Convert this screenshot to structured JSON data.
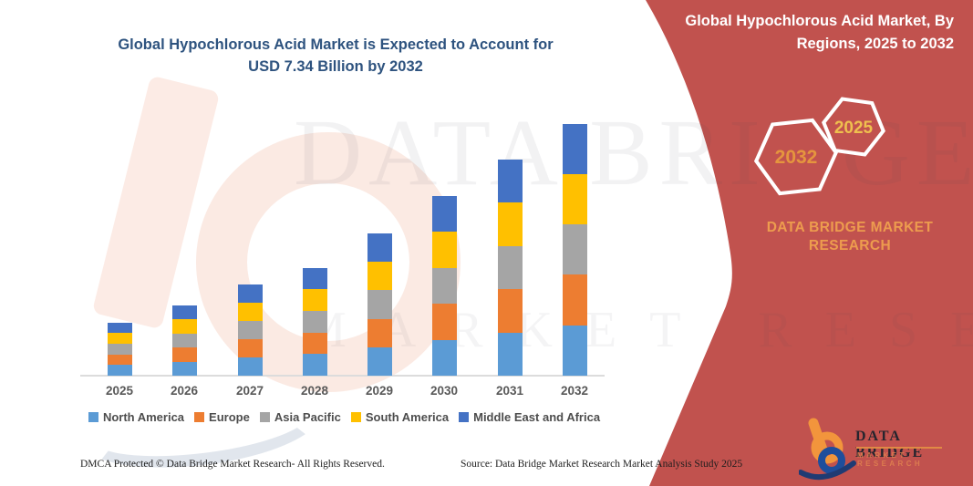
{
  "chart": {
    "title_lines": [
      "Global Hypochlorous Acid Market is Expected to Account for",
      "USD 7.34 Billion by 2032"
    ],
    "title_color": "#2E537F"
  },
  "chart_data": {
    "type": "bar",
    "stacked": true,
    "title": "Global Hypochlorous Acid Market is Expected to Account for USD 7.34 Billion by 2032",
    "unit": "USD Billion",
    "categories": [
      "2025",
      "2026",
      "2027",
      "2028",
      "2029",
      "2030",
      "2031",
      "2032"
    ],
    "totals_usd_billion": [
      1.54,
      2.06,
      2.65,
      3.16,
      4.16,
      5.24,
      6.31,
      7.34
    ],
    "series": [
      {
        "name": "North America",
        "color": "#5B9BD5",
        "values": [
          0.31,
          0.41,
          0.53,
          0.63,
          0.83,
          1.05,
          1.26,
          1.47
        ]
      },
      {
        "name": "Europe",
        "color": "#ED7D31",
        "values": [
          0.31,
          0.41,
          0.53,
          0.63,
          0.83,
          1.05,
          1.26,
          1.47
        ]
      },
      {
        "name": "Asia Pacific",
        "color": "#A5A5A5",
        "values": [
          0.31,
          0.41,
          0.53,
          0.63,
          0.83,
          1.05,
          1.26,
          1.47
        ]
      },
      {
        "name": "South America",
        "color": "#FFC000",
        "values": [
          0.31,
          0.41,
          0.53,
          0.63,
          0.83,
          1.05,
          1.26,
          1.47
        ]
      },
      {
        "name": "Middle East and Africa",
        "color": "#4472C4",
        "values": [
          0.31,
          0.41,
          0.53,
          0.63,
          0.83,
          1.05,
          1.26,
          1.47
        ]
      }
    ],
    "legend_position": "bottom",
    "grid": false,
    "xlabel": "",
    "ylabel": "",
    "annotation": "2032 total labeled USD 7.34 Billion; regional split shown approximately equal"
  },
  "side_panel": {
    "background": "#C1524E",
    "title_lines": [
      "Global Hypochlorous Acid Market, By",
      "Regions, 2025 to 2032"
    ],
    "hexagon_back_label": "2032",
    "hexagon_front_label": "2025",
    "hexagon_back_color": "#E5953E",
    "hexagon_front_color": "#EFC04E",
    "brand_lines": [
      "DATA BRIDGE MARKET",
      "RESEARCH"
    ],
    "brand_color": "#ED9C4E"
  },
  "logo": {
    "brand": "DATA BRIDGE",
    "sub": "MARKET RESEARCH"
  },
  "watermark": {
    "line1": "DATA BRIDGE",
    "line2": "MARKET RESEARCH"
  },
  "footer": {
    "dmca": "DMCA Protected © Data Bridge Market Research-  All Rights Reserved.",
    "source": "Source: Data Bridge Market Research  Market Analysis Study 2025"
  }
}
